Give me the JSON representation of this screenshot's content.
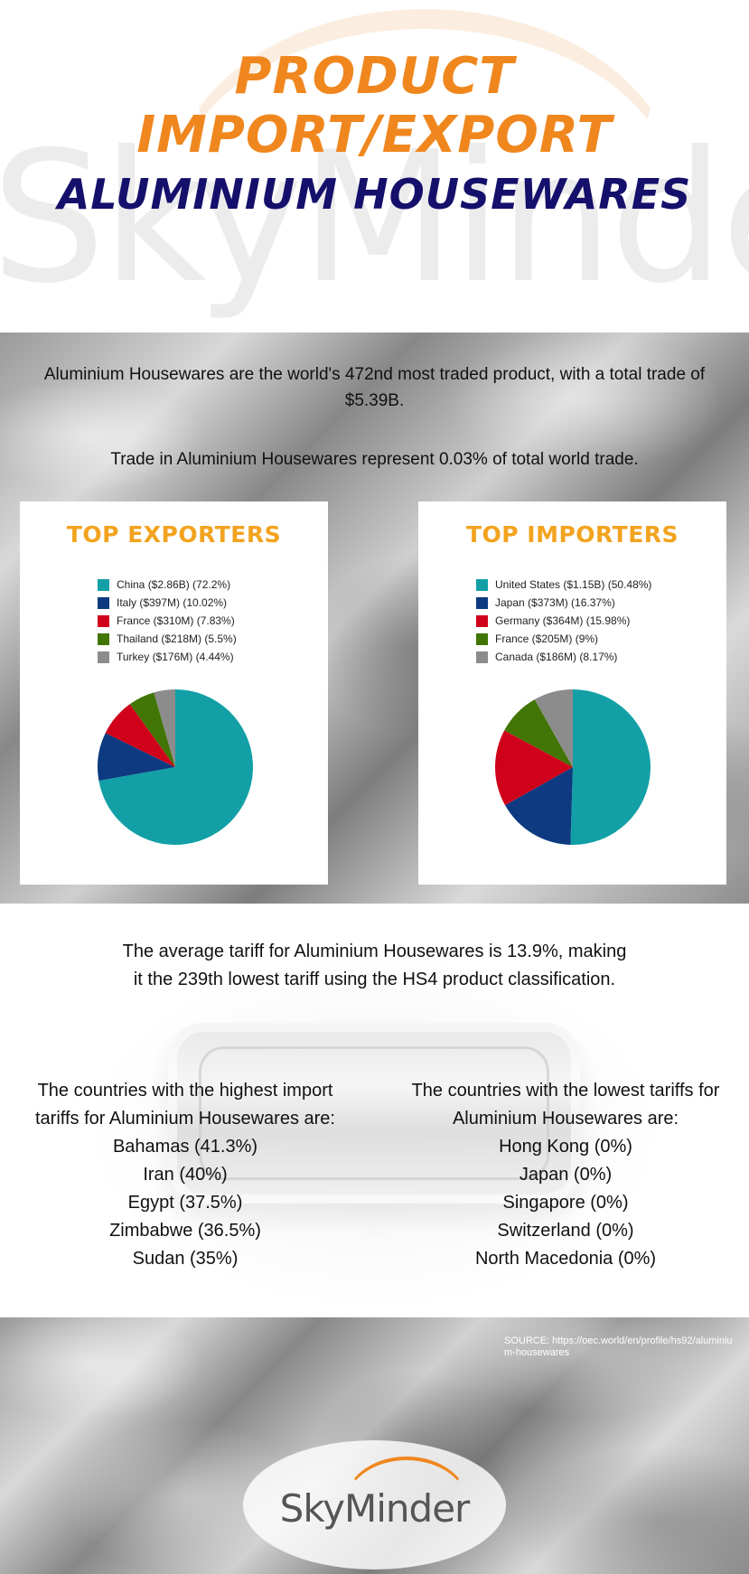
{
  "header": {
    "title": "PRODUCT IMPORT/EXPORT",
    "subtitle": "ALUMINIUM HOUSEWARES",
    "watermark": "SkyMinder"
  },
  "intro": {
    "line1": "Aluminium Housewares are the world's 472nd most traded product, with a total trade of $5.39B.",
    "line2": "Trade in Aluminium Housewares represent 0.03% of total world trade."
  },
  "colors": {
    "orange": "#f0871e",
    "navy": "#15106b",
    "card_title": "#f2a31f"
  },
  "chart_data": [
    {
      "type": "pie",
      "title": "TOP EXPORTERS",
      "slices": [
        {
          "label": "China ($2.86B) (72.2%)",
          "value": 72.2,
          "color": "#12a0a6"
        },
        {
          "label": "Italy ($397M) (10.02%)",
          "value": 10.02,
          "color": "#0d3a80"
        },
        {
          "label": "France ($310M) (7.83%)",
          "value": 7.83,
          "color": "#d0021b"
        },
        {
          "label": "Thailand ($218M) (5.5%)",
          "value": 5.5,
          "color": "#417505"
        },
        {
          "label": "Turkey ($176M) (4.44%)",
          "value": 4.44,
          "color": "#8c8c8c"
        }
      ],
      "legend": "top"
    },
    {
      "type": "pie",
      "title": "TOP IMPORTERS",
      "slices": [
        {
          "label": "United States ($1.15B) (50.48%)",
          "value": 50.48,
          "color": "#12a0a6"
        },
        {
          "label": "Japan ($373M) (16.37%)",
          "value": 16.37,
          "color": "#0d3a80"
        },
        {
          "label": "Germany ($364M) (15.98%)",
          "value": 15.98,
          "color": "#d0021b"
        },
        {
          "label": "France ($205M) (9%)",
          "value": 9,
          "color": "#417505"
        },
        {
          "label": "Canada ($186M) (8.17%)",
          "value": 8.17,
          "color": "#8c8c8c"
        }
      ],
      "legend": "top"
    }
  ],
  "tariff": {
    "average": "The average tariff for Aluminium Housewares is 13.9%, making it the 239th lowest tariff using the HS4 product classification.",
    "highest_intro": "The countries with the highest import tariffs for Aluminium Housewares are:",
    "highest": [
      "Bahamas (41.3%)",
      "Iran (40%)",
      "Egypt (37.5%)",
      "Zimbabwe (36.5%)",
      "Sudan (35%)"
    ],
    "lowest_intro": "The countries with the lowest tariffs for Aluminium Housewares are:",
    "lowest": [
      "Hong Kong (0%)",
      "Japan (0%)",
      "Singapore (0%)",
      "Switzerland (0%)",
      "North Macedonia (0%)"
    ]
  },
  "footer": {
    "source": "SOURCE: https://oec.world/en/profile/hs92/aluminium-housewares",
    "logo": "SkyMinder"
  }
}
